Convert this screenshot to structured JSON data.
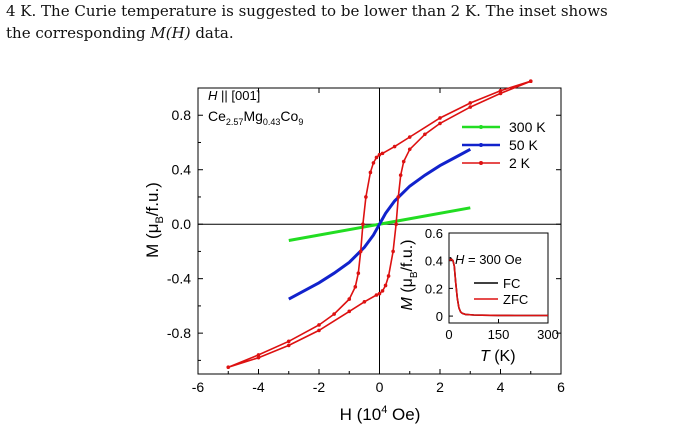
{
  "caption": {
    "line1": "4 K. The Curie temperature is suggested to be lower than 2 K. The inset shows",
    "line2_prefix": "the corresponding ",
    "line2_italic": "M(H)",
    "line2_suffix": " data."
  },
  "chart_data": [
    {
      "type": "line",
      "xlabel": "H (10^4 Oe)",
      "ylabel": "M (μB/f.u.)",
      "xlim": [
        -6,
        6
      ],
      "ylim": [
        -1.1,
        1.0
      ],
      "xticks": [
        -6,
        -4,
        -2,
        0,
        2,
        4,
        6
      ],
      "yticks": [
        -0.8,
        -0.4,
        0.0,
        0.4,
        0.8
      ],
      "annotations": [
        "H || [001]",
        "Ce2.57Mg0.43Co9"
      ],
      "legend_position": "top-right",
      "series": [
        {
          "name": "300 K",
          "color": "#22dd22",
          "x": [
            -3.0,
            0.0,
            3.0
          ],
          "y": [
            -0.12,
            0.0,
            0.12
          ]
        },
        {
          "name": "50 K",
          "color": "#1122cc",
          "x": [
            -3.0,
            -2.5,
            -2.0,
            -1.5,
            -1.0,
            -0.5,
            -0.2,
            0.0,
            0.2,
            0.5,
            1.0,
            1.5,
            2.0,
            2.5,
            3.0
          ],
          "y": [
            -0.55,
            -0.49,
            -0.43,
            -0.36,
            -0.28,
            -0.17,
            -0.08,
            0.0,
            0.08,
            0.17,
            0.28,
            0.36,
            0.43,
            0.49,
            0.55
          ]
        },
        {
          "name": "2 K",
          "color": "#dd1111",
          "x": [
            5.0,
            4.0,
            3.0,
            2.0,
            1.0,
            0.5,
            0.1,
            0.0,
            -0.1,
            -0.2,
            -0.3,
            -0.45,
            -0.55,
            -0.62,
            -0.7,
            -0.8,
            -1.0,
            -1.5,
            -2.0,
            -3.0,
            -4.0,
            -5.0,
            -4.0,
            -3.0,
            -2.0,
            -1.0,
            -0.5,
            -0.1,
            0.0,
            0.1,
            0.2,
            0.3,
            0.45,
            0.55,
            0.62,
            0.7,
            0.8,
            1.0,
            1.5,
            2.0,
            3.0,
            4.0,
            5.0
          ],
          "y": [
            1.05,
            0.98,
            0.89,
            0.78,
            0.64,
            0.57,
            0.52,
            0.51,
            0.49,
            0.45,
            0.38,
            0.2,
            0.0,
            -0.2,
            -0.36,
            -0.46,
            -0.55,
            -0.66,
            -0.74,
            -0.86,
            -0.96,
            -1.05,
            -0.98,
            -0.89,
            -0.78,
            -0.64,
            -0.57,
            -0.52,
            -0.51,
            -0.49,
            -0.45,
            -0.38,
            -0.2,
            0.0,
            0.2,
            0.36,
            0.46,
            0.55,
            0.66,
            0.74,
            0.86,
            0.96,
            1.05
          ]
        }
      ]
    },
    {
      "type": "line",
      "xlabel": "T (K)",
      "ylabel": "M (μB/f.u.)",
      "xlim": [
        0,
        300
      ],
      "ylim": [
        -0.05,
        0.6
      ],
      "xticks": [
        0,
        150,
        300
      ],
      "yticks": [
        0,
        0.2,
        0.4,
        0.6
      ],
      "annotations": [
        "H = 300 Oe"
      ],
      "legend_position": "right",
      "series": [
        {
          "name": "FC",
          "color": "#000000",
          "x": [
            2,
            5,
            8,
            12,
            16,
            20,
            25,
            30,
            35,
            40,
            50,
            75,
            100,
            150,
            200,
            250,
            300
          ],
          "y": [
            0.42,
            0.42,
            0.41,
            0.4,
            0.36,
            0.25,
            0.13,
            0.06,
            0.03,
            0.02,
            0.012,
            0.008,
            0.006,
            0.005,
            0.004,
            0.004,
            0.004
          ]
        },
        {
          "name": "ZFC",
          "color": "#dd1111",
          "x": [
            2,
            5,
            8,
            12,
            16,
            20,
            25,
            30,
            35,
            40,
            50,
            75,
            100,
            150,
            200,
            250,
            300
          ],
          "y": [
            0.4,
            0.41,
            0.41,
            0.4,
            0.36,
            0.25,
            0.13,
            0.06,
            0.03,
            0.02,
            0.012,
            0.008,
            0.006,
            0.005,
            0.004,
            0.004,
            0.004
          ]
        }
      ]
    }
  ]
}
